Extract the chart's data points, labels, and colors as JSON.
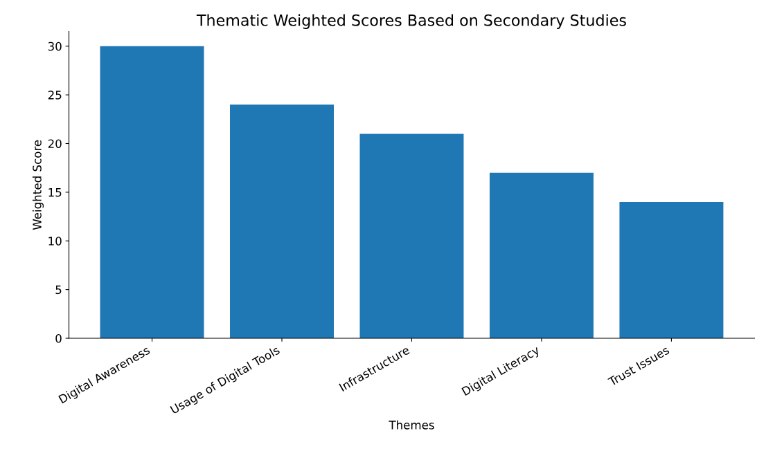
{
  "chart_data": {
    "type": "bar",
    "title": "Thematic Weighted Scores Based on Secondary Studies",
    "xlabel": "Themes",
    "ylabel": "Weighted Score",
    "categories": [
      "Digital Awareness",
      "Usage of Digital Tools",
      "Infrastructure",
      "Digital Literacy",
      "Trust Issues"
    ],
    "values": [
      30,
      24,
      21,
      17,
      14
    ],
    "color": "#1f77b4",
    "ylim": [
      0,
      31.5
    ],
    "yticks": [
      0,
      5,
      10,
      15,
      20,
      25,
      30
    ],
    "grid": false,
    "legend": false
  }
}
